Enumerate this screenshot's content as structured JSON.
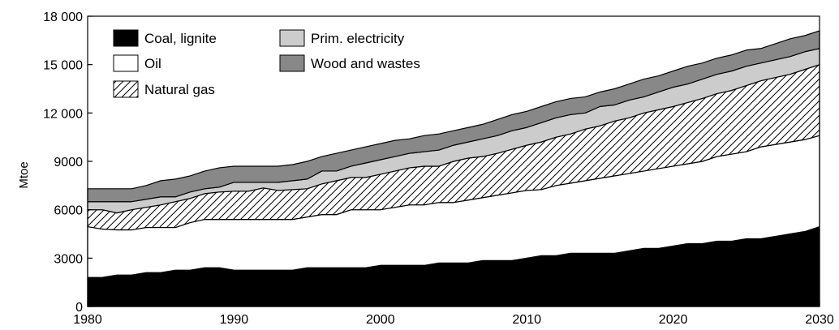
{
  "chart_data": {
    "type": "area",
    "stacked": true,
    "title": "",
    "xlabel": "",
    "ylabel": "Mtoe",
    "xlim": [
      1980,
      2030
    ],
    "ylim": [
      0,
      18000
    ],
    "x_ticks": [
      "1980",
      "1990",
      "2000",
      "2010",
      "2020",
      "2030"
    ],
    "y_ticks": [
      "0",
      "3000",
      "6000",
      "9000",
      "12 000",
      "15 000",
      "18 000"
    ],
    "grid": false,
    "legend_position": "top-left",
    "legend": [
      {
        "label": "Coal, lignite",
        "series": 0
      },
      {
        "label": "Prim. electricity",
        "series": 3
      },
      {
        "label": "Oil",
        "series": 1
      },
      {
        "label": "Wood and wastes",
        "series": 4
      },
      {
        "label": "Natural gas",
        "series": 2
      }
    ],
    "x": [
      1980,
      1981,
      1982,
      1983,
      1984,
      1985,
      1986,
      1987,
      1988,
      1989,
      1990,
      1991,
      1992,
      1993,
      1994,
      1995,
      1996,
      1997,
      1998,
      1999,
      2000,
      2001,
      2002,
      2003,
      2004,
      2005,
      2006,
      2007,
      2008,
      2009,
      2010,
      2011,
      2012,
      2013,
      2014,
      2015,
      2016,
      2017,
      2018,
      2019,
      2020,
      2021,
      2022,
      2023,
      2024,
      2025,
      2026,
      2027,
      2028,
      2029,
      2030
    ],
    "cumulative": {
      "coal": [
        1800,
        1800,
        1950,
        1950,
        2100,
        2100,
        2250,
        2250,
        2400,
        2400,
        2250,
        2250,
        2250,
        2250,
        2250,
        2400,
        2400,
        2400,
        2400,
        2400,
        2550,
        2550,
        2550,
        2550,
        2700,
        2700,
        2700,
        2850,
        2850,
        2850,
        3000,
        3150,
        3150,
        3300,
        3300,
        3300,
        3300,
        3450,
        3600,
        3600,
        3750,
        3900,
        3900,
        4050,
        4050,
        4200,
        4200,
        4350,
        4500,
        4650,
        4950
      ],
      "oil": [
        4950,
        4800,
        4750,
        4750,
        4900,
        4900,
        4900,
        5200,
        5400,
        5400,
        5400,
        5400,
        5400,
        5400,
        5400,
        5550,
        5700,
        5700,
        6000,
        6000,
        6000,
        6150,
        6300,
        6300,
        6450,
        6450,
        6600,
        6750,
        6900,
        7050,
        7200,
        7250,
        7500,
        7650,
        7800,
        7950,
        8100,
        8250,
        8400,
        8550,
        8700,
        8850,
        9000,
        9300,
        9450,
        9600,
        9900,
        10050,
        10200,
        10350,
        10600
      ],
      "gas": [
        6000,
        6000,
        5800,
        6000,
        6150,
        6300,
        6500,
        6700,
        7000,
        7100,
        7150,
        7150,
        7350,
        7200,
        7250,
        7300,
        7600,
        7800,
        8000,
        8000,
        8200,
        8400,
        8600,
        8700,
        8700,
        9000,
        9200,
        9300,
        9500,
        9750,
        10000,
        10200,
        10500,
        10700,
        11000,
        11200,
        11500,
        11700,
        12000,
        12200,
        12400,
        12650,
        12900,
        13200,
        13400,
        13700,
        14000,
        14200,
        14400,
        14700,
        15000
      ],
      "elec": [
        6500,
        6500,
        6500,
        6500,
        6650,
        6800,
        6800,
        7100,
        7300,
        7400,
        7700,
        7700,
        7700,
        7700,
        7800,
        7900,
        8400,
        8400,
        8700,
        8900,
        9100,
        9300,
        9500,
        9600,
        9700,
        10000,
        10200,
        10400,
        10600,
        10900,
        11100,
        11400,
        11700,
        11900,
        12000,
        12400,
        12500,
        12800,
        13000,
        13300,
        13600,
        13800,
        14100,
        14400,
        14600,
        14900,
        15100,
        15300,
        15500,
        15800,
        16000
      ],
      "wood": [
        7300,
        7300,
        7300,
        7300,
        7500,
        7800,
        7900,
        8100,
        8400,
        8600,
        8700,
        8700,
        8700,
        8700,
        8800,
        9000,
        9300,
        9500,
        9700,
        9900,
        10100,
        10300,
        10400,
        10600,
        10700,
        10900,
        11100,
        11300,
        11600,
        11900,
        12100,
        12400,
        12700,
        12900,
        13000,
        13300,
        13500,
        13800,
        14100,
        14300,
        14600,
        14900,
        15100,
        15400,
        15600,
        15900,
        16000,
        16300,
        16600,
        16800,
        17100
      ]
    },
    "series": [
      {
        "name": "Coal, lignite",
        "key": "coal",
        "fill": "#000000",
        "pattern": "solid"
      },
      {
        "name": "Oil",
        "key": "oil",
        "fill": "#ffffff",
        "pattern": "solid"
      },
      {
        "name": "Natural gas",
        "key": "gas",
        "fill": "#ffffff",
        "pattern": "diagonal-hatch"
      },
      {
        "name": "Prim. electricity",
        "key": "elec",
        "fill": "#cccccc",
        "pattern": "solid"
      },
      {
        "name": "Wood and wastes",
        "key": "wood",
        "fill": "#888888",
        "pattern": "solid"
      }
    ]
  }
}
